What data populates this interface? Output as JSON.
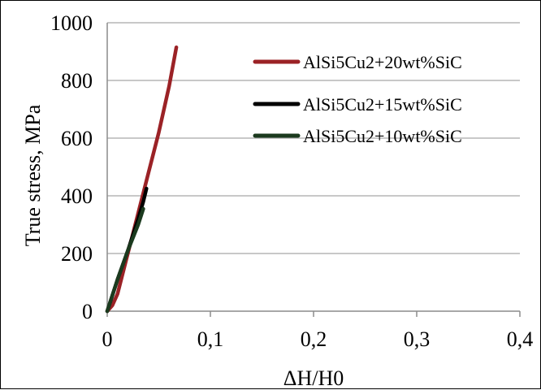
{
  "chart_data": {
    "type": "line",
    "title": "",
    "xlabel": "ΔH/H0",
    "ylabel": "True stress, MPa",
    "xlim": [
      0,
      0.4
    ],
    "ylim": [
      0,
      1000
    ],
    "x_ticks": [
      "0",
      "0,1",
      "0,2",
      "0,3",
      "0,4"
    ],
    "y_ticks": [
      "0",
      "200",
      "400",
      "600",
      "800",
      "1000"
    ],
    "grid": "horizontal",
    "legend_position": "top-right",
    "series": [
      {
        "name": "AlSi5Cu2+20wt%SiC",
        "color": "#9b2226",
        "points": [
          [
            0,
            0
          ],
          [
            0.005,
            20
          ],
          [
            0.01,
            60
          ],
          [
            0.02,
            200
          ],
          [
            0.03,
            340
          ],
          [
            0.04,
            480
          ],
          [
            0.05,
            620
          ],
          [
            0.06,
            780
          ],
          [
            0.067,
            915
          ]
        ]
      },
      {
        "name": "AlSi5Cu2+15wt%SiC",
        "color": "#000000",
        "points": [
          [
            0,
            0
          ],
          [
            0.01,
            110
          ],
          [
            0.02,
            210
          ],
          [
            0.03,
            320
          ],
          [
            0.035,
            380
          ],
          [
            0.038,
            425
          ]
        ]
      },
      {
        "name": "AlSi5Cu2+10wt%SiC",
        "color": "#1b3a1e",
        "points": [
          [
            0,
            0
          ],
          [
            0.01,
            110
          ],
          [
            0.02,
            210
          ],
          [
            0.03,
            300
          ],
          [
            0.035,
            355
          ]
        ]
      }
    ]
  }
}
